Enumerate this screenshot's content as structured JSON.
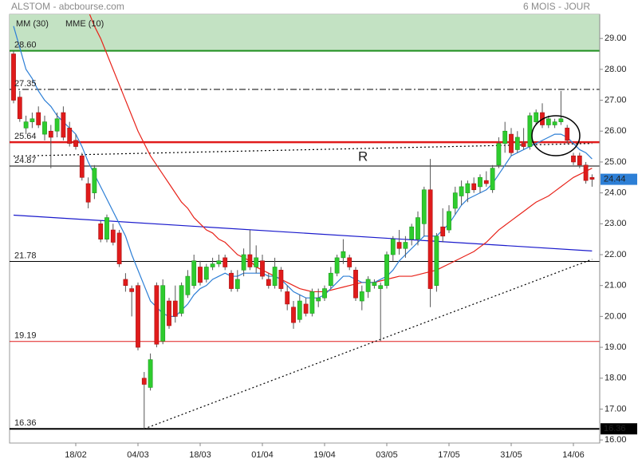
{
  "chart_data": {
    "type": "candlestick",
    "title": "ALSTOM - abcbourse.com",
    "period": "6 MOIS - JOUR",
    "up_color": "#2ecc2e",
    "down_color": "#e01b1b",
    "categories": [
      null,
      null,
      null,
      null,
      null,
      null,
      null,
      null,
      null,
      null,
      "18/02",
      null,
      null,
      null,
      null,
      null,
      null,
      null,
      null,
      null,
      "04/03",
      null,
      null,
      null,
      null,
      null,
      null,
      null,
      null,
      null,
      "18/03",
      null,
      null,
      null,
      null,
      null,
      null,
      null,
      null,
      null,
      "01/04",
      null,
      null,
      null,
      null,
      null,
      null,
      null,
      null,
      null,
      "19/04",
      null,
      null,
      null,
      null,
      null,
      null,
      null,
      null,
      null,
      "03/05",
      null,
      null,
      null,
      null,
      null,
      null,
      null,
      null,
      null,
      "17/05",
      null,
      null,
      null,
      null,
      null,
      null,
      null,
      null,
      null,
      "31/05",
      null,
      null,
      null,
      null,
      null,
      null,
      null,
      null,
      null,
      "14/06",
      null,
      null,
      null
    ],
    "ohlc": [
      [
        28.5,
        28.6,
        26.9,
        27.0
      ],
      [
        27.1,
        27.3,
        26.3,
        26.4
      ],
      [
        26.1,
        26.5,
        25.9,
        26.3
      ],
      [
        26.3,
        26.6,
        26.1,
        26.4
      ],
      [
        26.6,
        26.8,
        26.1,
        26.2
      ],
      [
        25.9,
        26.5,
        25.7,
        26.3
      ],
      [
        26.0,
        26.2,
        24.8,
        25.8
      ],
      [
        26.0,
        26.6,
        25.8,
        26.4
      ],
      [
        26.6,
        26.8,
        25.7,
        25.8
      ],
      [
        26.1,
        26.3,
        25.5,
        25.6
      ],
      [
        25.7,
        25.9,
        25.4,
        25.5
      ],
      [
        25.2,
        25.3,
        24.4,
        24.5
      ],
      [
        24.3,
        24.5,
        23.5,
        23.7
      ],
      [
        24.0,
        24.9,
        23.8,
        24.8
      ],
      [
        23.0,
        23.1,
        22.4,
        22.5
      ],
      [
        22.5,
        23.3,
        22.4,
        23.2
      ],
      [
        22.8,
        23.0,
        22.3,
        22.4
      ],
      [
        22.7,
        22.8,
        21.6,
        21.7
      ],
      [
        21.2,
        21.4,
        20.8,
        21.0
      ],
      [
        20.9,
        21.0,
        20.0,
        20.8
      ],
      [
        21.0,
        21.1,
        18.9,
        19.0
      ],
      [
        18.0,
        18.2,
        16.36,
        17.8
      ],
      [
        17.7,
        18.8,
        17.6,
        18.6
      ],
      [
        21.0,
        21.1,
        19.0,
        19.1
      ],
      [
        19.2,
        21.2,
        19.1,
        21.0
      ],
      [
        20.5,
        20.6,
        19.6,
        19.7
      ],
      [
        20.5,
        21.0,
        19.8,
        20.0
      ],
      [
        20.1,
        21.1,
        20.0,
        21.0
      ],
      [
        20.7,
        21.5,
        20.6,
        21.3
      ],
      [
        21.0,
        22.0,
        20.9,
        21.8
      ],
      [
        21.6,
        21.8,
        21.0,
        21.1
      ],
      [
        21.2,
        21.7,
        21.1,
        21.6
      ],
      [
        21.6,
        21.9,
        21.5,
        21.7
      ],
      [
        21.7,
        22.0,
        21.6,
        21.8
      ],
      [
        21.9,
        22.0,
        21.5,
        21.6
      ],
      [
        21.4,
        21.5,
        20.8,
        20.9
      ],
      [
        20.9,
        21.5,
        20.8,
        21.2
      ],
      [
        21.5,
        22.2,
        21.3,
        22.0
      ],
      [
        22.0,
        22.8,
        21.5,
        21.6
      ],
      [
        21.6,
        22.3,
        21.4,
        21.9
      ],
      [
        21.8,
        22.0,
        21.2,
        21.3
      ],
      [
        21.2,
        21.4,
        20.9,
        21.0
      ],
      [
        21.0,
        21.9,
        20.9,
        21.6
      ],
      [
        21.5,
        21.6,
        20.8,
        20.9
      ],
      [
        20.8,
        21.0,
        20.2,
        20.4
      ],
      [
        20.3,
        20.5,
        19.6,
        19.8
      ],
      [
        19.9,
        20.7,
        19.8,
        20.5
      ],
      [
        20.4,
        20.6,
        20.0,
        20.1
      ],
      [
        20.1,
        20.9,
        20.0,
        20.8
      ],
      [
        20.5,
        20.9,
        20.3,
        20.6
      ],
      [
        20.6,
        21.0,
        20.5,
        20.9
      ],
      [
        21.0,
        21.6,
        20.9,
        21.4
      ],
      [
        21.4,
        22.0,
        21.3,
        21.9
      ],
      [
        21.9,
        22.5,
        21.7,
        22.1
      ],
      [
        21.9,
        22.0,
        21.5,
        21.6
      ],
      [
        21.5,
        21.6,
        20.5,
        20.6
      ],
      [
        20.5,
        21.0,
        20.2,
        20.8
      ],
      [
        20.8,
        21.3,
        20.6,
        21.2
      ],
      [
        21.0,
        21.2,
        20.9,
        21.1
      ],
      [
        20.9,
        21.1,
        19.2,
        21.0
      ],
      [
        21.0,
        22.1,
        20.9,
        22.0
      ],
      [
        22.0,
        22.6,
        21.8,
        22.5
      ],
      [
        22.4,
        22.8,
        22.0,
        22.2
      ],
      [
        22.2,
        22.6,
        21.9,
        22.4
      ],
      [
        22.5,
        23.0,
        22.3,
        22.9
      ],
      [
        22.5,
        23.4,
        22.3,
        23.2
      ],
      [
        23.0,
        24.2,
        22.6,
        24.1
      ],
      [
        24.1,
        25.1,
        20.3,
        20.9
      ],
      [
        21.0,
        22.7,
        20.8,
        22.6
      ],
      [
        22.9,
        23.5,
        22.4,
        22.6
      ],
      [
        22.8,
        23.6,
        22.7,
        23.4
      ],
      [
        23.5,
        24.2,
        23.3,
        24.0
      ],
      [
        23.9,
        24.4,
        23.6,
        24.2
      ],
      [
        24.0,
        24.4,
        23.7,
        24.3
      ],
      [
        24.3,
        24.5,
        24.0,
        24.1
      ],
      [
        24.2,
        24.6,
        24.0,
        24.5
      ],
      [
        24.4,
        24.7,
        24.2,
        24.3
      ],
      [
        24.1,
        24.9,
        24.0,
        24.8
      ],
      [
        24.9,
        25.8,
        24.8,
        25.6
      ],
      [
        25.6,
        26.3,
        25.3,
        26.0
      ],
      [
        25.9,
        26.1,
        25.2,
        25.3
      ],
      [
        25.4,
        26.0,
        25.3,
        25.8
      ],
      [
        25.6,
        26.1,
        25.4,
        25.5
      ],
      [
        25.5,
        26.6,
        25.4,
        26.5
      ],
      [
        26.3,
        26.7,
        26.2,
        26.6
      ],
      [
        26.6,
        26.9,
        26.1,
        26.2
      ],
      [
        26.2,
        26.5,
        26.1,
        26.4
      ],
      [
        26.2,
        26.4,
        26.1,
        26.3
      ],
      [
        26.3,
        27.3,
        26.2,
        26.4
      ],
      [
        26.1,
        26.2,
        25.6,
        25.7
      ],
      [
        25.2,
        25.3,
        24.9,
        25.0
      ],
      [
        25.2,
        25.3,
        24.8,
        24.9
      ],
      [
        24.9,
        25.0,
        24.3,
        24.4
      ],
      [
        24.5,
        24.6,
        24.2,
        24.44
      ]
    ],
    "series": [
      {
        "name": "MM (30)",
        "color": "#e8231a",
        "values": [
          null,
          null,
          null,
          null,
          null,
          null,
          null,
          null,
          null,
          null,
          null,
          null,
          29.9,
          29.4,
          29.0,
          28.5,
          28.0,
          27.5,
          27.0,
          26.5,
          26.0,
          25.6,
          25.2,
          24.9,
          24.6,
          24.3,
          24.0,
          23.7,
          23.5,
          23.2,
          23.0,
          22.8,
          22.7,
          22.5,
          22.4,
          22.2,
          22.0,
          21.9,
          21.8,
          21.6,
          21.5,
          21.4,
          21.3,
          21.2,
          21.1,
          21.0,
          20.9,
          20.85,
          20.8,
          20.8,
          20.8,
          20.85,
          20.9,
          20.95,
          21.0,
          21.05,
          21.1,
          21.1,
          21.1,
          21.15,
          21.2,
          21.25,
          21.3,
          21.3,
          21.3,
          21.35,
          21.4,
          21.45,
          21.5,
          21.6,
          21.7,
          21.8,
          21.9,
          22.0,
          22.1,
          22.25,
          22.4,
          22.6,
          22.8,
          22.95,
          23.1,
          23.25,
          23.4,
          23.55,
          23.7,
          23.8,
          23.9,
          24.05,
          24.2,
          24.35,
          24.5,
          24.6,
          24.7,
          24.8
        ]
      },
      {
        "name": "MME (10)",
        "color": "#2d7fd6",
        "values": [
          29.4,
          28.7,
          28.0,
          27.7,
          27.3,
          27.0,
          26.8,
          26.5,
          26.3,
          26.1,
          25.9,
          25.5,
          25.0,
          24.6,
          24.2,
          23.8,
          23.4,
          23.0,
          22.6,
          22.0,
          21.5,
          21.0,
          20.5,
          20.3,
          20.1,
          20.0,
          20.0,
          20.2,
          20.4,
          20.7,
          20.9,
          21.0,
          21.2,
          21.3,
          21.4,
          21.3,
          21.3,
          21.4,
          21.4,
          21.4,
          21.4,
          21.3,
          21.3,
          21.2,
          21.0,
          20.8,
          20.7,
          20.6,
          20.6,
          20.6,
          20.7,
          20.9,
          21.1,
          21.3,
          21.3,
          21.2,
          21.1,
          21.1,
          21.1,
          21.2,
          21.3,
          21.5,
          21.8,
          22.0,
          22.2,
          22.4,
          22.6,
          22.6,
          22.6,
          22.8,
          23.0,
          23.3,
          23.6,
          23.8,
          23.9,
          24.0,
          24.1,
          24.3,
          24.6,
          24.9,
          25.2,
          25.3,
          25.4,
          25.5,
          25.6,
          25.7,
          25.8,
          25.9,
          25.9,
          25.8,
          25.6,
          25.4,
          25.3,
          25.1
        ]
      }
    ],
    "ylim": [
      15.9,
      29.78
    ],
    "yticks": [
      {
        "value": 16,
        "label": "16.00"
      },
      {
        "value": 17,
        "label": "17.00"
      },
      {
        "value": 18,
        "label": "18.00"
      },
      {
        "value": 19,
        "label": "19.00"
      },
      {
        "value": 20,
        "label": "20.00"
      },
      {
        "value": 21,
        "label": "21.00"
      },
      {
        "value": 22,
        "label": "22.00"
      },
      {
        "value": 23,
        "label": "23.00"
      },
      {
        "value": 24,
        "label": "24.00"
      },
      {
        "value": 25,
        "label": "25.00"
      },
      {
        "value": 26,
        "label": "26.00"
      },
      {
        "value": 27,
        "label": "27.00"
      },
      {
        "value": 28,
        "label": "28.00"
      },
      {
        "value": 29,
        "label": "29.00"
      }
    ],
    "zones": [
      {
        "from": 28.6,
        "to": 29.78,
        "color": "#c3e2c3"
      }
    ],
    "levels": [
      {
        "value": 28.6,
        "label": "28.60",
        "color": "#1f8f1f",
        "width": 2,
        "style": "solid"
      },
      {
        "value": 27.35,
        "label": "27.35",
        "color": "#000000",
        "width": 1,
        "style": "dashdot"
      },
      {
        "value": 25.64,
        "label": "25.64",
        "color": "#e01b1b",
        "width": 2.5,
        "style": "solid"
      },
      {
        "value": 24.87,
        "label": "24.87",
        "color": "#000000",
        "width": 1,
        "style": "solid"
      },
      {
        "value": 21.78,
        "label": "21.78",
        "color": "#000000",
        "width": 1,
        "style": "solid"
      },
      {
        "value": 19.19,
        "label": "19.19",
        "color": "#e01b1b",
        "width": 1,
        "style": "solid"
      },
      {
        "value": 16.36,
        "label": "16.36",
        "color": "#000000",
        "width": 2,
        "style": "solid"
      }
    ],
    "trendlines": [
      {
        "from": [
          0,
          23.28
        ],
        "to": [
          93,
          22.12
        ],
        "color": "#1a1acc",
        "style": "solid"
      },
      {
        "from": [
          21,
          16.36
        ],
        "to": [
          93,
          21.85
        ],
        "color": "#000000",
        "style": "dotted"
      },
      {
        "from": [
          0,
          25.19
        ],
        "to": [
          93,
          25.6
        ],
        "color": "#000000",
        "style": "dotted"
      }
    ],
    "annotations": [
      {
        "text": "R"
      }
    ]
  }
}
